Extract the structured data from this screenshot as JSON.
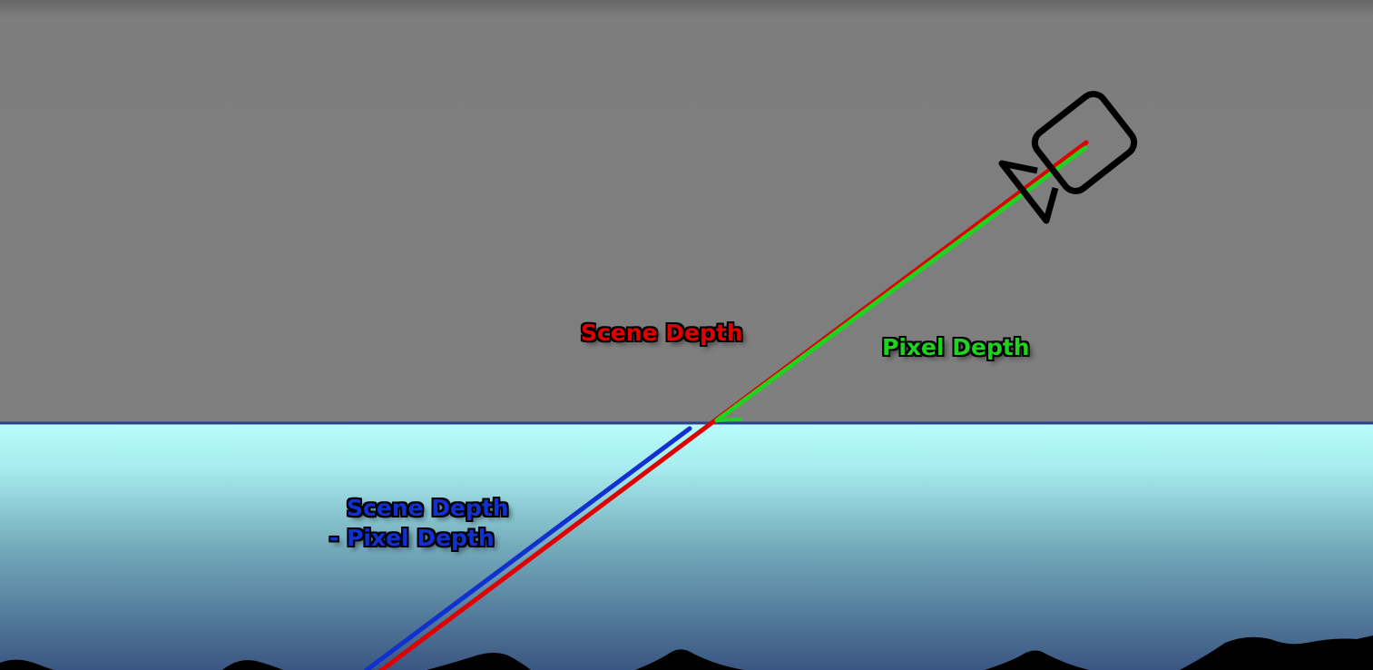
{
  "labels": {
    "scene_depth": "Scene Depth",
    "pixel_depth": "Pixel Depth",
    "difference_line1": "Scene Depth",
    "difference_line2": "- Pixel Depth"
  },
  "colors": {
    "background_air": "#7f7f7f",
    "water_top": "#b8fdfb",
    "water_mid": "#6ea5b4",
    "water_bottom": "#3a5a86",
    "water_surface_line": "#2b3f8c",
    "seabed": "#000000",
    "camera_outline": "#000000",
    "scene_depth": "#e00000",
    "pixel_depth": "#1fd21f",
    "difference": "#1030d0"
  },
  "icons": {
    "camera": "video-camera-icon"
  }
}
